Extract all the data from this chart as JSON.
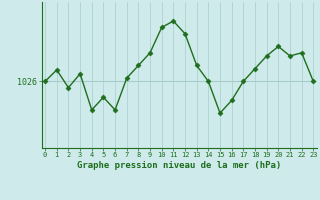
{
  "x": [
    0,
    1,
    2,
    3,
    4,
    5,
    6,
    7,
    8,
    9,
    10,
    11,
    12,
    13,
    14,
    15,
    16,
    17,
    18,
    19,
    20,
    21,
    22,
    23
  ],
  "y": [
    1026.0,
    1027.8,
    1025.0,
    1027.2,
    1021.5,
    1023.5,
    1021.5,
    1026.5,
    1028.5,
    1030.5,
    1034.5,
    1035.5,
    1033.5,
    1028.5,
    1026.0,
    1021.0,
    1023.0,
    1026.0,
    1028.0,
    1030.0,
    1031.5,
    1030.0,
    1030.5,
    1026.0
  ],
  "line_color": "#1e6e1e",
  "marker": "D",
  "marker_size": 2.5,
  "bg_color": "#ceeaea",
  "grid_color": "#a8cccc",
  "axes_color": "#1e6e1e",
  "tick_color": "#1e6e1e",
  "ytick_label": "1026",
  "ytick_value": 1026,
  "xlabel": "Graphe pression niveau de la mer (hPa)",
  "xlim": [
    -0.3,
    23.3
  ],
  "ylim": [
    1015.5,
    1038.5
  ],
  "xticks": [
    0,
    1,
    2,
    3,
    4,
    5,
    6,
    7,
    8,
    9,
    10,
    11,
    12,
    13,
    14,
    15,
    16,
    17,
    18,
    19,
    20,
    21,
    22,
    23
  ]
}
